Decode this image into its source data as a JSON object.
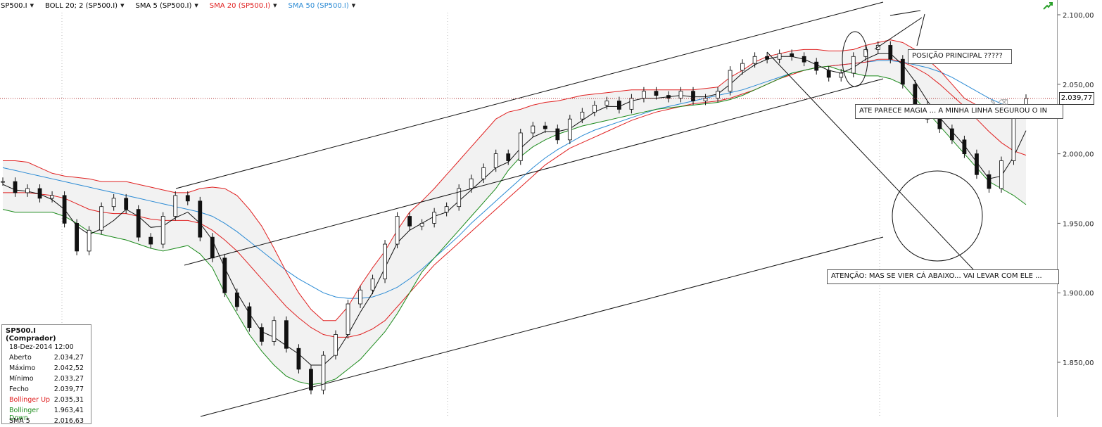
{
  "toolbar": {
    "items": [
      {
        "label": "SP500.I",
        "color": "#000000"
      },
      {
        "label": "BOLL 20; 2 (SP500.I)",
        "color": "#000000"
      },
      {
        "label": "SMA 5 (SP500.I)",
        "color": "#000000"
      },
      {
        "label": "SMA 20 (SP500.I)",
        "color": "#e02020"
      },
      {
        "label": "SMA 50 (SP500.I)",
        "color": "#2a8ad4"
      }
    ]
  },
  "price_axis": {
    "labels": [
      "2.100,00",
      "2.050,00",
      "2.000,00",
      "1.950,00",
      "1.900,00",
      "1.850,00"
    ],
    "current_price": "2.039,77"
  },
  "annotations": {
    "posicao": "POSIÇÃO PRINCIPAL ?????",
    "magia": "ATE PARECE MAGIA ... A MINHA LINHA SEGUROU O IN",
    "atencao": "ATENÇÃO: MAS SE VIER CÁ ABAIXO... VAI LEVAR COM ELE ..."
  },
  "info_panel": {
    "title": "SP500.I (Comprador)",
    "date": "18-Dez-2014 12:00",
    "rows": [
      {
        "label": "Aberto",
        "value": "2.034,27",
        "color": "#111111"
      },
      {
        "label": "Máximo",
        "value": "2.042,52",
        "color": "#111111"
      },
      {
        "label": "Mínimo",
        "value": "2.033,27",
        "color": "#111111"
      },
      {
        "label": "Fecho",
        "value": "2.039,77",
        "color": "#111111"
      },
      {
        "label": "Bollinger Up",
        "value": "2.035,31",
        "color": "#e02020"
      },
      {
        "label": "Bollinger Down",
        "value": "1.963,41",
        "color": "#1a8a1a"
      },
      {
        "label": "SMA 5",
        "value": "2.016,63",
        "color": "#111111"
      }
    ]
  },
  "colors": {
    "sma20": "#e02020",
    "sma50": "#2a8ad4",
    "sma5": "#111111",
    "boll_up": "#e02020",
    "boll_down": "#1a8a1a",
    "band_fill": "#f2f2f2"
  },
  "chart_data": {
    "type": "line",
    "title": "",
    "xlabel": "",
    "ylabel": "",
    "ylim": [
      1810,
      2110
    ],
    "y_ticks": [
      1850,
      1900,
      1950,
      2000,
      2050,
      2100
    ],
    "grid": false,
    "series": [
      {
        "name": "SP500.I",
        "kind": "candlestick",
        "values": [
          1980,
          1972,
          1975,
          1968,
          1970,
          1950,
          1930,
          1945,
          1962,
          1968,
          1960,
          1940,
          1935,
          1955,
          1970,
          1966,
          1940,
          1925,
          1900,
          1890,
          1875,
          1865,
          1880,
          1860,
          1845,
          1830,
          1855,
          1870,
          1892,
          1902,
          1910,
          1935,
          1955,
          1948,
          1950,
          1958,
          1962,
          1975,
          1982,
          1990,
          2000,
          1995,
          2015,
          2020,
          2018,
          2010,
          2025,
          2030,
          2035,
          2038,
          2032,
          2040,
          2045,
          2042,
          2040,
          2045,
          2038,
          2040,
          2045,
          2060,
          2065,
          2070,
          2068,
          2072,
          2070,
          2066,
          2060,
          2055,
          2058,
          2070,
          2075,
          2078,
          2068,
          2050,
          2035,
          2025,
          2018,
          2010,
          2000,
          1985,
          1975,
          1995,
          2030,
          2039.77
        ]
      },
      {
        "name": "SMA 5 (SP500.I)",
        "values": [
          1978,
          1974,
          1973,
          1971,
          1967,
          1960,
          1948,
          1942,
          1946,
          1952,
          1960,
          1955,
          1947,
          1948,
          1954,
          1958,
          1950,
          1938,
          1918,
          1900,
          1885,
          1872,
          1868,
          1862,
          1856,
          1848,
          1848,
          1856,
          1870,
          1886,
          1900,
          1918,
          1936,
          1945,
          1950,
          1955,
          1958,
          1966,
          1974,
          1982,
          1990,
          1994,
          2004,
          2012,
          2016,
          2016,
          2018,
          2024,
          2030,
          2034,
          2034,
          2038,
          2040,
          2040,
          2041,
          2042,
          2041,
          2041,
          2043,
          2050,
          2058,
          2064,
          2068,
          2070,
          2070,
          2068,
          2064,
          2060,
          2058,
          2062,
          2068,
          2072,
          2072,
          2064,
          2052,
          2038,
          2026,
          2016,
          2006,
          1994,
          1982,
          1984,
          1998,
          2016.63
        ]
      },
      {
        "name": "SMA 20 (SP500.I)",
        "values": [
          1972,
          1972,
          1972,
          1971,
          1970,
          1968,
          1964,
          1960,
          1958,
          1957,
          1957,
          1955,
          1953,
          1952,
          1952,
          1952,
          1950,
          1945,
          1938,
          1930,
          1920,
          1910,
          1900,
          1890,
          1882,
          1875,
          1870,
          1868,
          1868,
          1870,
          1874,
          1880,
          1890,
          1900,
          1910,
          1920,
          1928,
          1936,
          1944,
          1952,
          1960,
          1968,
          1976,
          1984,
          1992,
          1998,
          2004,
          2008,
          2012,
          2016,
          2020,
          2024,
          2027,
          2030,
          2032,
          2034,
          2036,
          2037,
          2038,
          2040,
          2043,
          2046,
          2050,
          2054,
          2057,
          2060,
          2062,
          2063,
          2064,
          2065,
          2066,
          2068,
          2068,
          2066,
          2062,
          2057,
          2050,
          2042,
          2034,
          2025,
          2016,
          2008,
          2002,
          1999
        ]
      },
      {
        "name": "SMA 50 (SP500.I)",
        "values": [
          1990,
          1988,
          1986,
          1984,
          1982,
          1980,
          1978,
          1976,
          1974,
          1972,
          1970,
          1968,
          1966,
          1964,
          1962,
          1960,
          1958,
          1955,
          1950,
          1944,
          1937,
          1930,
          1923,
          1916,
          1910,
          1905,
          1900,
          1897,
          1896,
          1896,
          1897,
          1900,
          1904,
          1910,
          1917,
          1925,
          1933,
          1941,
          1950,
          1958,
          1966,
          1974,
          1982,
          1990,
          1997,
          2003,
          2008,
          2013,
          2017,
          2020,
          2023,
          2026,
          2029,
          2032,
          2034,
          2036,
          2038,
          2040,
          2042,
          2044,
          2046,
          2049,
          2052,
          2055,
          2058,
          2060,
          2062,
          2063,
          2064,
          2065,
          2066,
          2067,
          2067,
          2066,
          2064,
          2062,
          2059,
          2055,
          2050,
          2045,
          2040,
          2036,
          2033,
          2031
        ]
      },
      {
        "name": "Bollinger Up",
        "values": [
          1995,
          1995,
          1994,
          1990,
          1986,
          1984,
          1983,
          1982,
          1980,
          1980,
          1980,
          1978,
          1976,
          1974,
          1972,
          1972,
          1975,
          1976,
          1975,
          1970,
          1960,
          1948,
          1932,
          1915,
          1900,
          1888,
          1880,
          1880,
          1890,
          1905,
          1918,
          1930,
          1945,
          1958,
          1966,
          1975,
          1985,
          1995,
          2005,
          2015,
          2025,
          2030,
          2032,
          2035,
          2037,
          2038,
          2040,
          2042,
          2043,
          2044,
          2045,
          2046,
          2046,
          2046,
          2046,
          2046,
          2046,
          2047,
          2048,
          2055,
          2060,
          2066,
          2070,
          2072,
          2074,
          2075,
          2075,
          2074,
          2074,
          2075,
          2078,
          2080,
          2082,
          2080,
          2075,
          2068,
          2060,
          2050,
          2040,
          2035,
          2030,
          2030,
          2033,
          2035.31
        ]
      },
      {
        "name": "Bollinger Down",
        "values": [
          1960,
          1958,
          1958,
          1958,
          1958,
          1955,
          1950,
          1944,
          1942,
          1940,
          1938,
          1935,
          1932,
          1930,
          1932,
          1934,
          1928,
          1918,
          1900,
          1885,
          1870,
          1858,
          1848,
          1840,
          1836,
          1834,
          1835,
          1838,
          1845,
          1852,
          1862,
          1872,
          1885,
          1900,
          1915,
          1925,
          1935,
          1945,
          1955,
          1965,
          1975,
          1988,
          1998,
          2005,
          2010,
          2014,
          2017,
          2020,
          2022,
          2024,
          2026,
          2028,
          2030,
          2032,
          2033,
          2034,
          2035,
          2036,
          2037,
          2039,
          2042,
          2046,
          2050,
          2054,
          2058,
          2060,
          2062,
          2063,
          2060,
          2058,
          2056,
          2056,
          2054,
          2050,
          2040,
          2030,
          2020,
          2010,
          2000,
          1990,
          1980,
          1975,
          1970,
          1963.41
        ]
      }
    ]
  }
}
